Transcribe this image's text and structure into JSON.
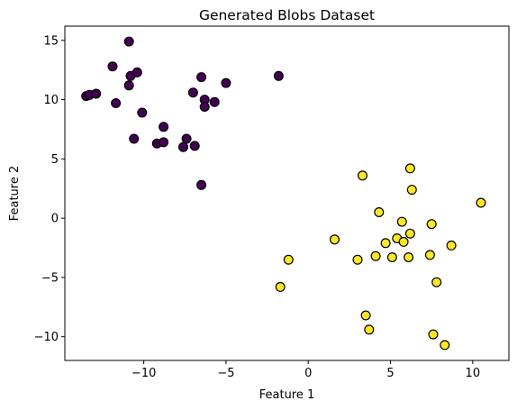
{
  "chart_data": {
    "type": "scatter",
    "title": "Generated Blobs Dataset",
    "xlabel": "Feature 1",
    "ylabel": "Feature 2",
    "xlim": [
      -14.8,
      12.2
    ],
    "ylim": [
      -12.0,
      16.2
    ],
    "xticks": [
      {
        "value": -10,
        "label": "−10"
      },
      {
        "value": -5,
        "label": "−5"
      },
      {
        "value": 0,
        "label": "0"
      },
      {
        "value": 5,
        "label": "5"
      },
      {
        "value": 10,
        "label": "10"
      }
    ],
    "yticks": [
      {
        "value": -10,
        "label": "−10"
      },
      {
        "value": -5,
        "label": "−5"
      },
      {
        "value": 0,
        "label": "0"
      },
      {
        "value": 5,
        "label": "5"
      },
      {
        "value": 10,
        "label": "10"
      },
      {
        "value": 15,
        "label": "15"
      }
    ],
    "grid": false,
    "marker_edge_color": "#000000",
    "series": [
      {
        "color": "#440154",
        "points": [
          [
            -10.9,
            14.9
          ],
          [
            -11.9,
            12.8
          ],
          [
            -13.5,
            10.3
          ],
          [
            -13.3,
            10.4
          ],
          [
            -12.9,
            10.5
          ],
          [
            -11.7,
            9.7
          ],
          [
            -10.9,
            11.2
          ],
          [
            -10.8,
            12.0
          ],
          [
            -10.4,
            12.3
          ],
          [
            -10.1,
            8.9
          ],
          [
            -10.6,
            6.7
          ],
          [
            -9.2,
            6.3
          ],
          [
            -8.8,
            6.4
          ],
          [
            -8.8,
            7.7
          ],
          [
            -7.6,
            6.0
          ],
          [
            -7.4,
            6.7
          ],
          [
            -6.9,
            6.1
          ],
          [
            -7.0,
            10.6
          ],
          [
            -6.5,
            11.9
          ],
          [
            -6.3,
            10.0
          ],
          [
            -6.3,
            9.4
          ],
          [
            -5.7,
            9.8
          ],
          [
            -5.0,
            11.4
          ],
          [
            -6.5,
            2.8
          ],
          [
            -1.8,
            12.0
          ]
        ]
      },
      {
        "color": "#fde725",
        "points": [
          [
            3.3,
            3.6
          ],
          [
            6.2,
            4.2
          ],
          [
            6.3,
            2.4
          ],
          [
            10.5,
            1.3
          ],
          [
            4.3,
            0.5
          ],
          [
            5.7,
            -0.3
          ],
          [
            7.5,
            -0.5
          ],
          [
            6.2,
            -1.3
          ],
          [
            5.4,
            -1.7
          ],
          [
            4.7,
            -2.1
          ],
          [
            5.8,
            -2.0
          ],
          [
            1.6,
            -1.8
          ],
          [
            8.7,
            -2.3
          ],
          [
            4.1,
            -3.2
          ],
          [
            5.1,
            -3.3
          ],
          [
            6.1,
            -3.3
          ],
          [
            7.4,
            -3.1
          ],
          [
            3.0,
            -3.5
          ],
          [
            -1.2,
            -3.5
          ],
          [
            7.8,
            -5.4
          ],
          [
            -1.7,
            -5.8
          ],
          [
            3.5,
            -8.2
          ],
          [
            3.7,
            -9.4
          ],
          [
            7.6,
            -9.8
          ],
          [
            8.3,
            -10.7
          ]
        ]
      }
    ]
  }
}
